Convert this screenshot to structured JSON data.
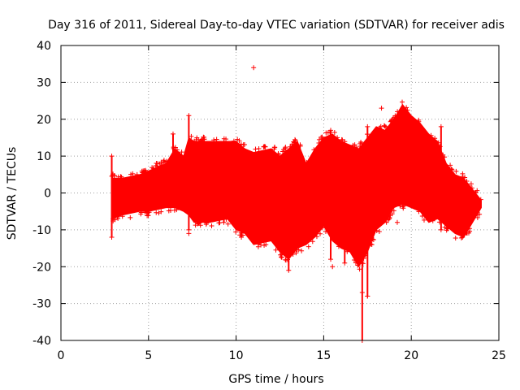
{
  "chart_data": {
    "type": "scatter",
    "title": "Day 316 of 2011, Sidereal Day-to-day VTEC variation (SDTVAR) for receiver adis",
    "xlabel": "GPS time / hours",
    "ylabel": "SDTVAR / TECUs",
    "xlim": [
      0,
      25
    ],
    "ylim": [
      -40,
      40
    ],
    "xticks": [
      0,
      5,
      10,
      15,
      20,
      25
    ],
    "yticks": [
      -40,
      -30,
      -20,
      -10,
      0,
      10,
      20,
      30,
      40
    ],
    "xtick_labels": [
      "0",
      "5",
      "10",
      "15",
      "20",
      "25"
    ],
    "ytick_labels": [
      "-40",
      "-30",
      "-20",
      "-10",
      "0",
      "10",
      "20",
      "30",
      "40"
    ],
    "grid": true,
    "marker": "+",
    "color": "#ff0000",
    "envelope": {
      "description": "dense point band shown as upper/lower extent per hour",
      "x": [
        2.9,
        3.5,
        4.5,
        5.0,
        6.0,
        6.5,
        7.0,
        7.3,
        7.6,
        8.5,
        9.5,
        10.0,
        10.5,
        11.0,
        12.0,
        12.5,
        13.0,
        13.5,
        14.0,
        14.5,
        15.0,
        15.5,
        16.0,
        16.5,
        17.0,
        17.5,
        18.0,
        18.5,
        19.0,
        19.5,
        20.0,
        20.5,
        21.0,
        21.5,
        22.0,
        22.5,
        23.0,
        24.0
      ],
      "upper": [
        4,
        4,
        5,
        6,
        8,
        12,
        10,
        15,
        14,
        14,
        14,
        14,
        12,
        11,
        12,
        10,
        12,
        14,
        8,
        12,
        15,
        16,
        14,
        13,
        12,
        15,
        18,
        17,
        20,
        24,
        21,
        19,
        16,
        14,
        8,
        5,
        4,
        -2
      ],
      "lower": [
        -7,
        -6,
        -5,
        -5,
        -4,
        -4,
        -5,
        -6,
        -8,
        -8,
        -7,
        -10,
        -11,
        -14,
        -13,
        -16,
        -18,
        -15,
        -14,
        -12,
        -9,
        -13,
        -15,
        -16,
        -20,
        -16,
        -10,
        -8,
        -4,
        -3,
        -4,
        -5,
        -8,
        -7,
        -9,
        -11,
        -12,
        -4
      ]
    },
    "spikes": [
      {
        "x": 2.9,
        "ymin": -12,
        "ymax": 10
      },
      {
        "x": 6.4,
        "ymin": -3,
        "ymax": 16
      },
      {
        "x": 7.3,
        "ymin": -10,
        "ymax": 21
      },
      {
        "x": 9.3,
        "ymin": -8,
        "ymax": 14
      },
      {
        "x": 10.3,
        "ymin": -12,
        "ymax": 10
      },
      {
        "x": 13.0,
        "ymin": -21,
        "ymax": 9
      },
      {
        "x": 15.4,
        "ymin": -18,
        "ymax": 17
      },
      {
        "x": 16.2,
        "ymin": -19,
        "ymax": 10
      },
      {
        "x": 17.2,
        "ymin": -40,
        "ymax": -14
      },
      {
        "x": 17.5,
        "ymin": -28,
        "ymax": 18
      },
      {
        "x": 21.7,
        "ymin": -10,
        "ymax": 18
      }
    ],
    "outliers": [
      {
        "x": 11.0,
        "y": 34
      },
      {
        "x": 18.3,
        "y": 23
      },
      {
        "x": 7.3,
        "y": -11
      },
      {
        "x": 19.2,
        "y": -8
      },
      {
        "x": 15.5,
        "y": -20
      },
      {
        "x": 17.2,
        "y": -27
      },
      {
        "x": 17.5,
        "y": -28
      }
    ]
  }
}
